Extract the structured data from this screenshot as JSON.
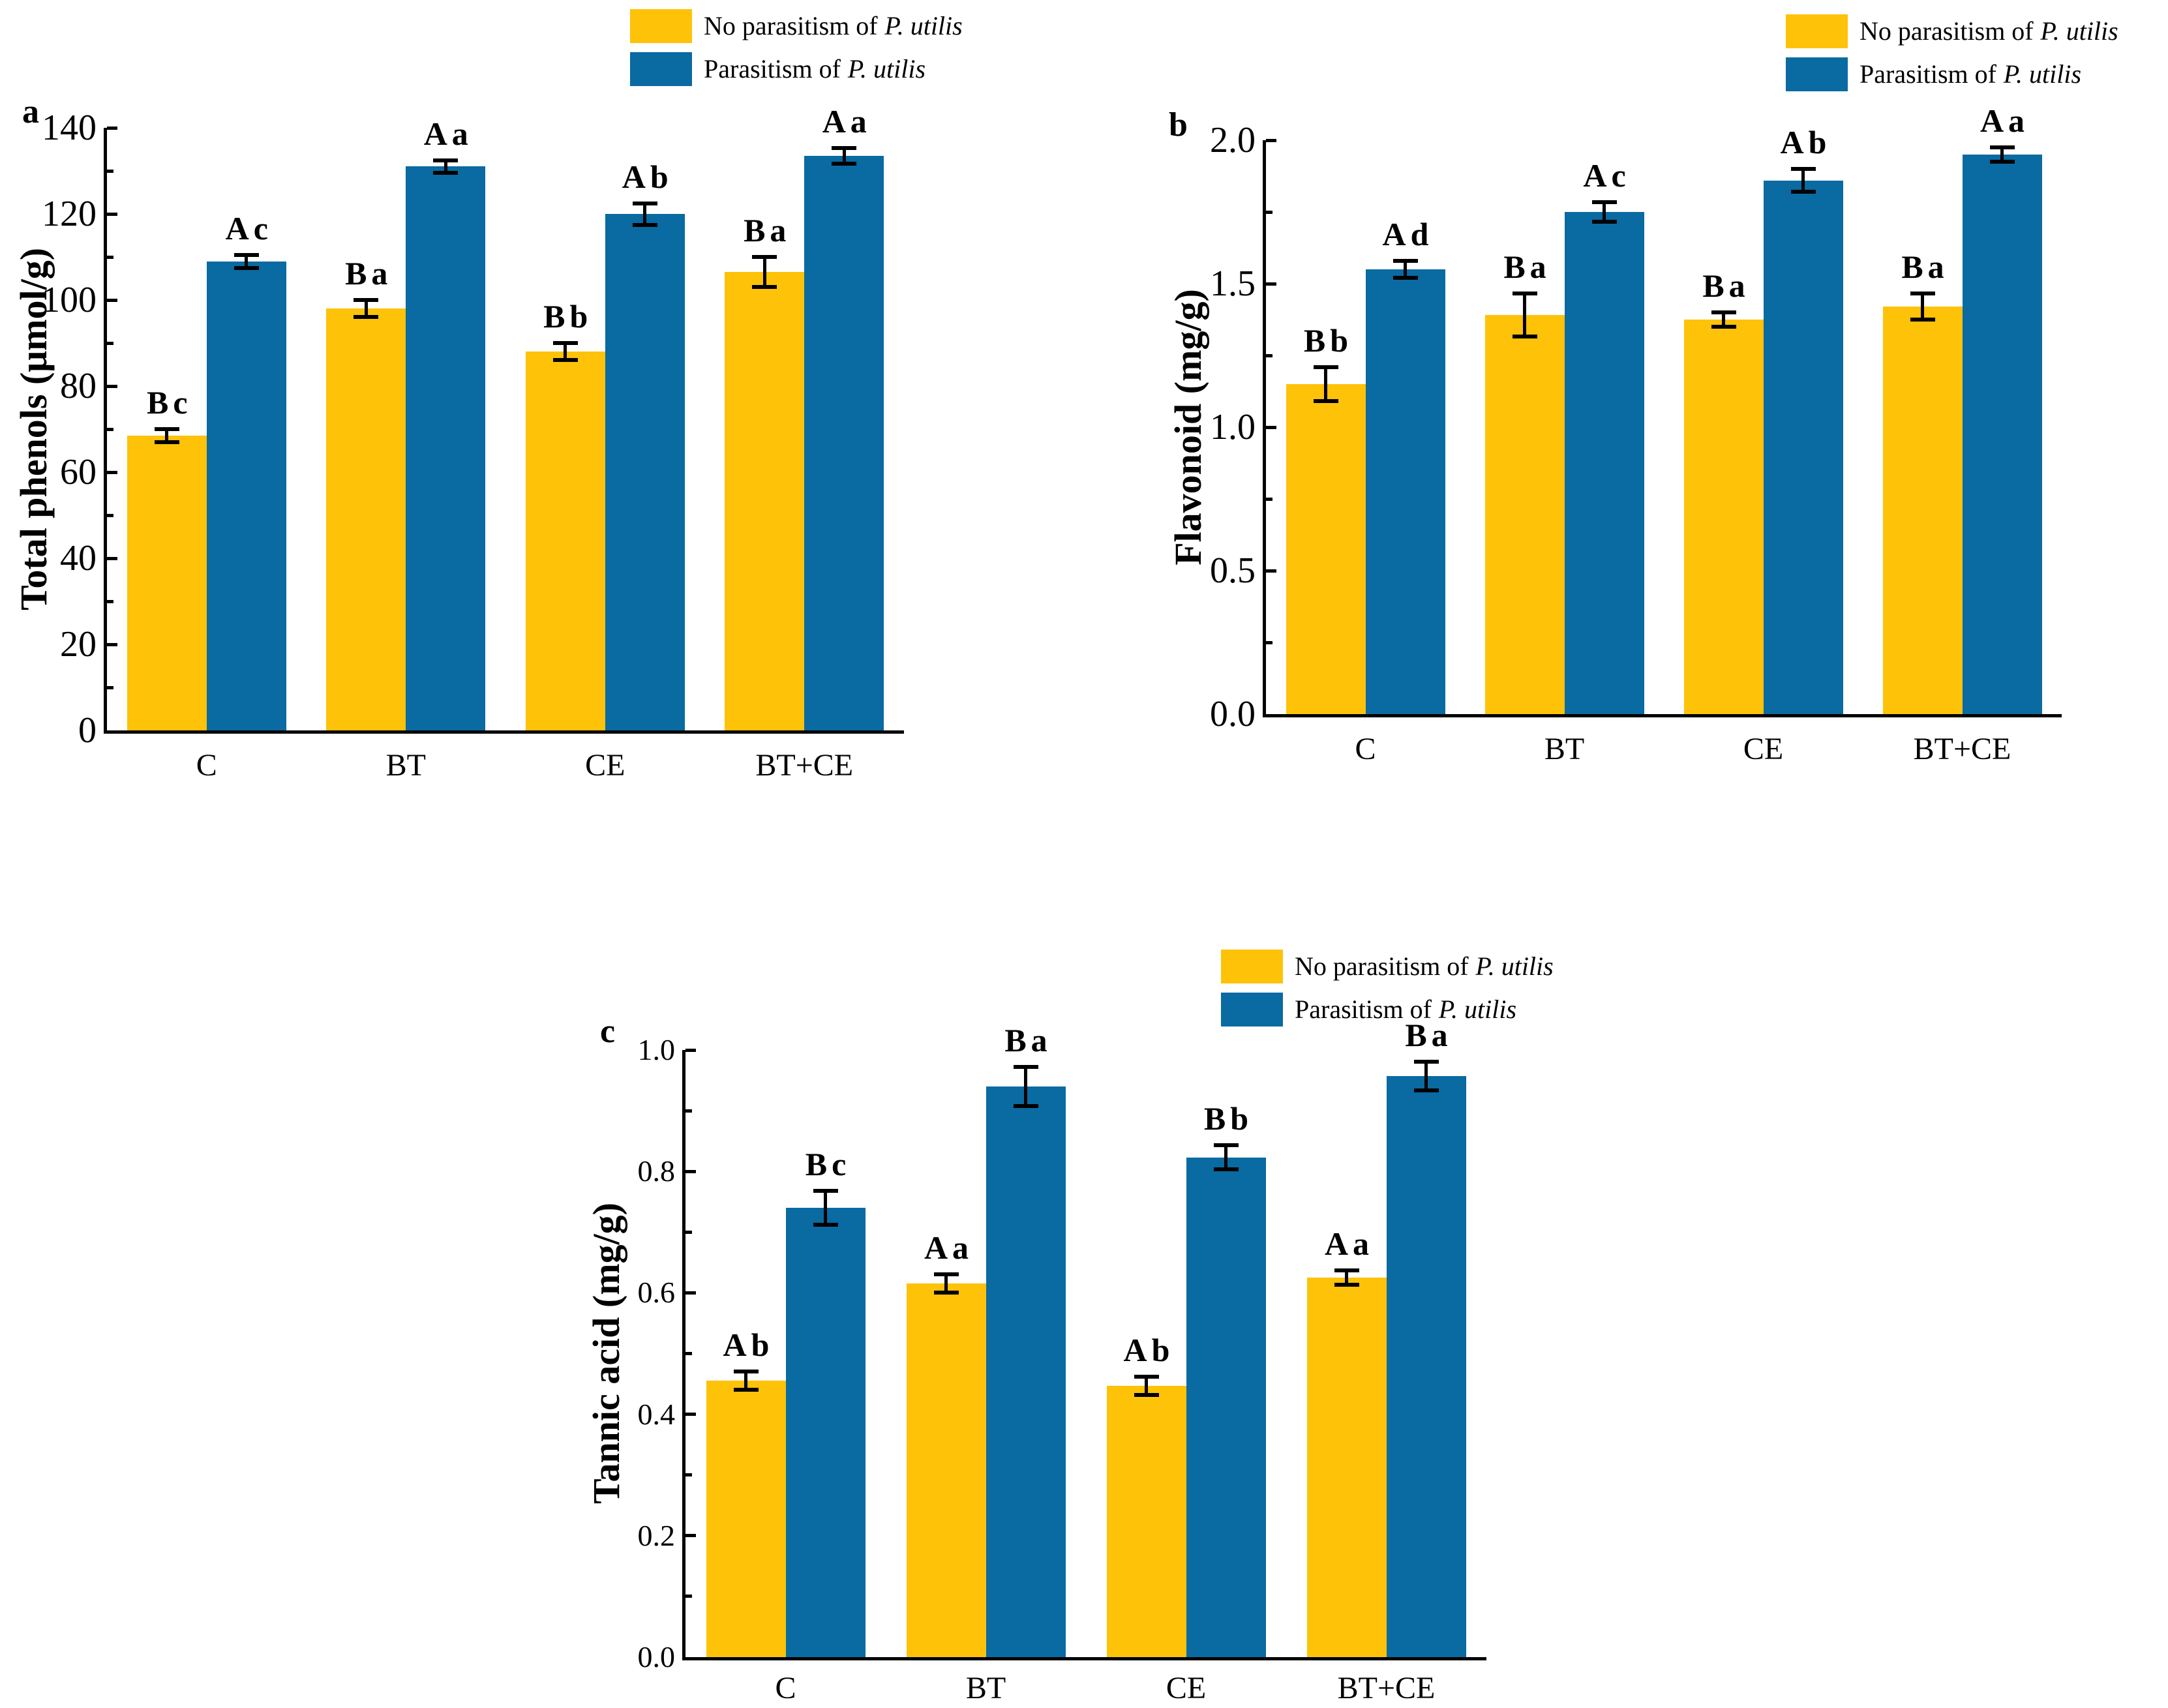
{
  "legend": {
    "no_prefix": "No parasitism of",
    "yes_prefix": "Parasitism of",
    "species": "P. utilis"
  },
  "colors": {
    "no_parasitism": "#fec208",
    "parasitism": "#0a6aa2",
    "axis": "#000000",
    "error_bar": "#000000"
  },
  "chart_data": [
    {
      "type": "bar",
      "panel_letter": "a",
      "ylabel": "Total phenols (μmol/g)",
      "categories": [
        "C",
        "BT",
        "CE",
        "BT+CE"
      ],
      "ylim": [
        0,
        140
      ],
      "ytick_values": [
        0,
        20,
        40,
        60,
        80,
        100,
        120,
        140
      ],
      "ytick_labels": [
        "0",
        "20",
        "40",
        "60",
        "80",
        "100",
        "120",
        "140"
      ],
      "minor_step": 10,
      "grid": false,
      "legend_position": "above-center",
      "series": [
        {
          "name": "No parasitism of P. utilis",
          "values": [
            68.5,
            98,
            88,
            106.5
          ],
          "errors": [
            1.5,
            2,
            2,
            3.5
          ],
          "sig_labels": [
            "Bc",
            "Ba",
            "Bb",
            "Ba"
          ]
        },
        {
          "name": "Parasitism of P. utilis",
          "values": [
            109,
            131,
            120,
            133.5
          ],
          "errors": [
            1.5,
            1.5,
            2.5,
            1.8
          ],
          "sig_labels": [
            "Ac",
            "Aa",
            "Ab",
            "Aa"
          ]
        }
      ]
    },
    {
      "type": "bar",
      "panel_letter": "b",
      "ylabel": "Flavonoid (mg/g)",
      "categories": [
        "C",
        "BT",
        "CE",
        "BT+CE"
      ],
      "ylim": [
        0,
        2.0
      ],
      "ytick_values": [
        0,
        0.5,
        1.0,
        1.5,
        2.0
      ],
      "ytick_labels": [
        "0.0",
        "0.5",
        "1.0",
        "1.5",
        "2.0"
      ],
      "minor_step": 0.25,
      "grid": false,
      "legend_position": "above-right",
      "series": [
        {
          "name": "No parasitism of P. utilis",
          "values": [
            1.15,
            1.39,
            1.375,
            1.42
          ],
          "errors": [
            0.06,
            0.075,
            0.025,
            0.045
          ],
          "sig_labels": [
            "Bb",
            "Ba",
            "Ba",
            "Ba"
          ]
        },
        {
          "name": "Parasitism of P. utilis",
          "values": [
            1.55,
            1.75,
            1.86,
            1.95
          ],
          "errors": [
            0.03,
            0.035,
            0.04,
            0.025
          ],
          "sig_labels": [
            "Ad",
            "Ac",
            "Ab",
            "Aa"
          ]
        }
      ]
    },
    {
      "type": "bar",
      "panel_letter": "c",
      "ylabel": "Tannic acid (mg/g)",
      "categories": [
        "C",
        "BT",
        "CE",
        "BT+CE"
      ],
      "ylim": [
        0,
        1.0
      ],
      "ytick_values": [
        0,
        0.2,
        0.4,
        0.6,
        0.8,
        1.0
      ],
      "ytick_labels": [
        "0.0",
        "0.2",
        "0.4",
        "0.6",
        "0.8",
        "1.0"
      ],
      "minor_step": 0.1,
      "grid": false,
      "legend_position": "above-center",
      "series": [
        {
          "name": "No parasitism of P. utilis",
          "values": [
            0.455,
            0.615,
            0.447,
            0.625
          ],
          "errors": [
            0.015,
            0.015,
            0.015,
            0.012
          ],
          "sig_labels": [
            "Ab",
            "Aa",
            "Ab",
            "Aa"
          ]
        },
        {
          "name": "Parasitism of P. utilis",
          "values": [
            0.74,
            0.94,
            0.823,
            0.957
          ],
          "errors": [
            0.028,
            0.032,
            0.02,
            0.024
          ],
          "sig_labels": [
            "Bc",
            "Ba",
            "Bb",
            "Ba"
          ]
        }
      ]
    }
  ]
}
